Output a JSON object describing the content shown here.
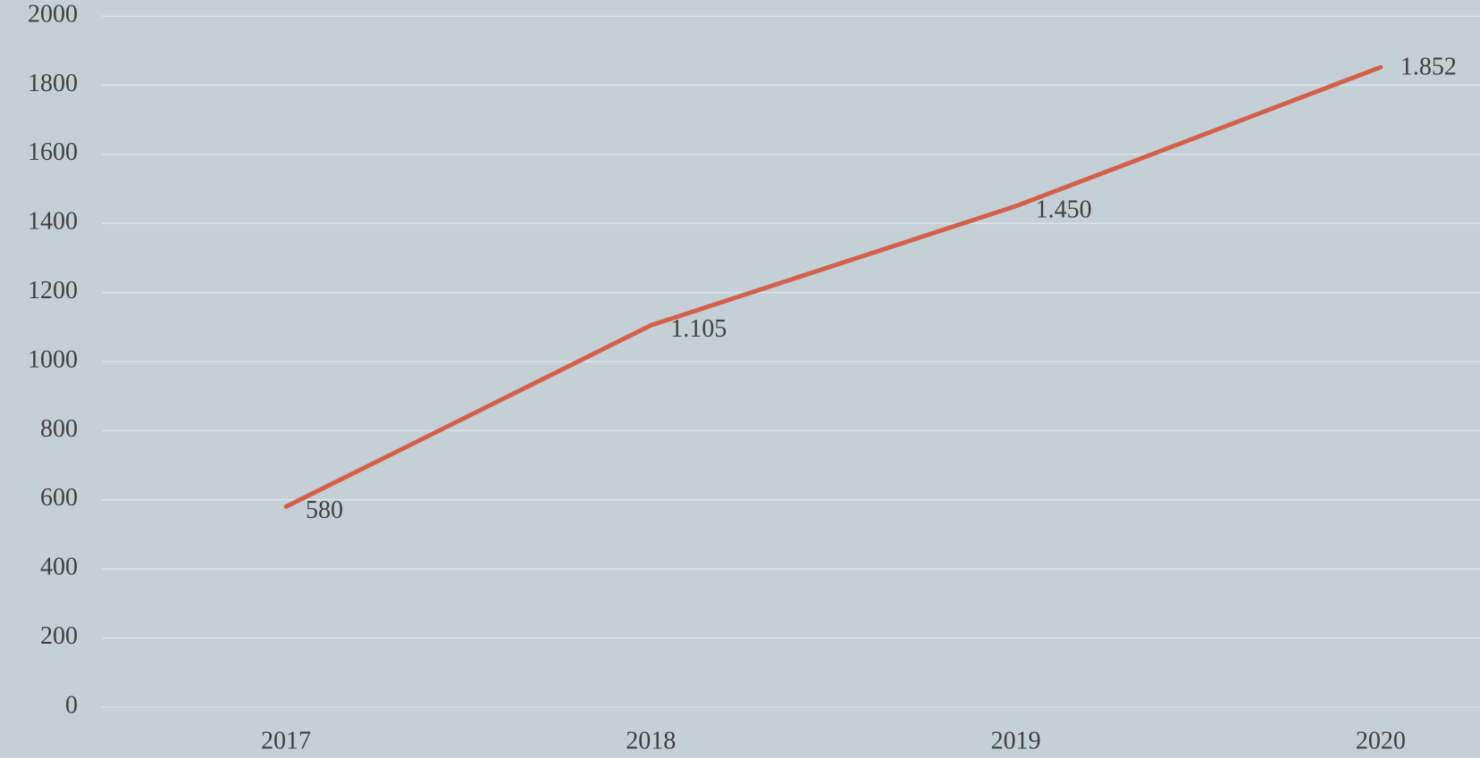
{
  "chart_data": {
    "type": "line",
    "categories": [
      "2017",
      "2018",
      "2019",
      "2020"
    ],
    "series": [
      {
        "name": null,
        "color": "#d3604a",
        "values": [
          580,
          1105,
          1450,
          1852
        ],
        "value_labels": [
          "580",
          "1.105",
          "1.450",
          "1.852"
        ]
      }
    ],
    "ylim": [
      0,
      2000
    ],
    "yticks": [
      0,
      200,
      400,
      600,
      800,
      1000,
      1200,
      1400,
      1600,
      1800,
      2000
    ],
    "grid": true
  }
}
